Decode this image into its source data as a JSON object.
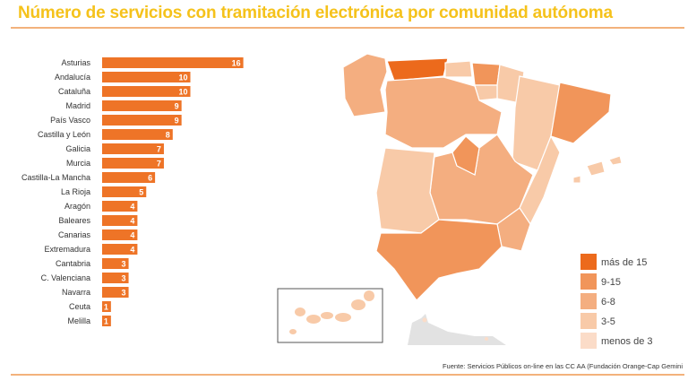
{
  "chart_data": [
    {
      "type": "bar",
      "orientation": "horizontal",
      "title": "Número de servicios con tramitación electrónica por comunidad autónoma",
      "categories": [
        "Asturias",
        "Andalucía",
        "Cataluña",
        "Madrid",
        "País Vasco",
        "Castilla y León",
        "Galicia",
        "Murcia",
        "Castilla-La Mancha",
        "La Rioja",
        "Aragón",
        "Baleares",
        "Canarias",
        "Extremadura",
        "Cantabria",
        "C. Valenciana",
        "Navarra",
        "Ceuta",
        "Melilla"
      ],
      "values": [
        16,
        10,
        10,
        9,
        9,
        8,
        7,
        7,
        6,
        5,
        4,
        4,
        4,
        4,
        3,
        3,
        3,
        1,
        1
      ],
      "color": "#ee7427",
      "data_labels": true
    },
    {
      "type": "choropleth-map",
      "legend": [
        {
          "label": "más de 15",
          "color": "#ec6a1c"
        },
        {
          "label": "9-15",
          "color": "#f1955a"
        },
        {
          "label": "6-8",
          "color": "#f4ae80"
        },
        {
          "label": "3-5",
          "color": "#f8caa8"
        },
        {
          "label": "menos de 3",
          "color": "#fbdcc8"
        }
      ],
      "legend_position": "bottom-right"
    }
  ],
  "source": "Fuente: Servicios Públicos on-line en las CC AA (Fundación Orange-Cap Gemini"
}
